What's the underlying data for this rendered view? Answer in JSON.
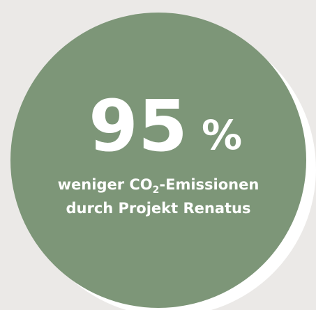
{
  "stat": {
    "number": "95",
    "unit": "%"
  },
  "caption": {
    "line1": {
      "before": "weniger CO",
      "subscript": "2",
      "after": "-Emissionen"
    },
    "line2": "durch Projekt Renatus"
  }
}
